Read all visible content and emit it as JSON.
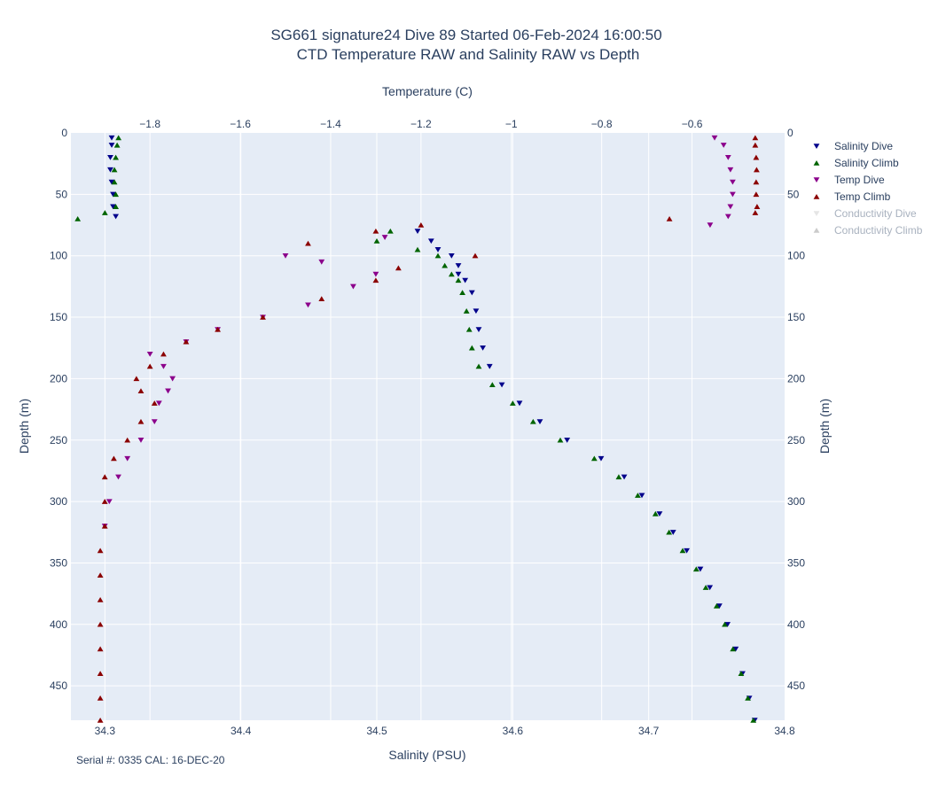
{
  "chart_data": {
    "type": "scatter",
    "title_line1": "SG661 signature24 Dive 89 Started 06-Feb-2024 16:00:50",
    "title_line2": "CTD Temperature RAW and Salinity RAW vs Depth",
    "x_bottom_label": "Salinity (PSU)",
    "x_top_label": "Temperature (C)",
    "y_label": "Depth (m)",
    "y_right_label": "Depth (m)",
    "footnote": "Serial #: 0335  CAL: 16-DEC-20",
    "x_bottom_range": [
      34.275,
      34.8
    ],
    "x_bottom_ticks": [
      34.3,
      34.4,
      34.5,
      34.6,
      34.7,
      34.8
    ],
    "x_bottom_tick_labels": [
      "34.3",
      "34.4",
      "34.5",
      "34.6",
      "34.7",
      "34.8"
    ],
    "x_top_range": [
      -1.975,
      -0.395
    ],
    "x_top_ticks": [
      -1.8,
      -1.6,
      -1.4,
      -1.2,
      -1.0,
      -0.8,
      -0.6
    ],
    "x_top_tick_labels": [
      "−1.8",
      "−1.6",
      "−1.4",
      "−1.2",
      "−1",
      "−0.8",
      "−0.6"
    ],
    "y_range": [
      0,
      478
    ],
    "y_reversed": true,
    "y_ticks": [
      0,
      50,
      100,
      150,
      200,
      250,
      300,
      350,
      400,
      450
    ],
    "y_tick_labels": [
      "0",
      "50",
      "100",
      "150",
      "200",
      "250",
      "300",
      "350",
      "400",
      "450"
    ],
    "grid": true,
    "legend_position": "right",
    "series": [
      {
        "name": "Salinity Dive",
        "axis": "salinity",
        "marker": "triangle-down",
        "color": "#00008b",
        "visible": true,
        "depth": [
          4,
          10,
          20,
          30,
          40,
          50,
          60,
          68,
          80,
          88,
          95,
          100,
          108,
          115,
          120,
          130,
          145,
          160,
          175,
          190,
          205,
          220,
          235,
          250,
          265,
          280,
          295,
          310,
          325,
          340,
          355,
          370,
          385,
          400,
          420,
          440,
          460,
          478
        ],
        "values": [
          34.305,
          34.305,
          34.304,
          34.304,
          34.305,
          34.306,
          34.306,
          34.308,
          34.53,
          34.54,
          34.545,
          34.555,
          34.56,
          34.56,
          34.565,
          34.57,
          34.573,
          34.575,
          34.578,
          34.583,
          34.592,
          34.605,
          34.62,
          34.64,
          34.665,
          34.682,
          34.695,
          34.708,
          34.718,
          34.728,
          34.738,
          34.745,
          34.752,
          34.758,
          34.764,
          34.769,
          34.774,
          34.778
        ]
      },
      {
        "name": "Salinity Climb",
        "axis": "salinity",
        "marker": "triangle-up",
        "color": "#006400",
        "visible": true,
        "depth": [
          4,
          10,
          20,
          30,
          40,
          50,
          60,
          65,
          70,
          80,
          88,
          95,
          100,
          108,
          115,
          120,
          130,
          145,
          160,
          175,
          190,
          205,
          220,
          235,
          250,
          265,
          280,
          295,
          310,
          325,
          340,
          355,
          370,
          385,
          400,
          420,
          440,
          460,
          478
        ],
        "values": [
          34.31,
          34.309,
          34.308,
          34.307,
          34.307,
          34.308,
          34.308,
          34.3,
          34.28,
          34.51,
          34.5,
          34.53,
          34.545,
          34.55,
          34.555,
          34.56,
          34.563,
          34.566,
          34.568,
          34.57,
          34.575,
          34.585,
          34.6,
          34.615,
          34.635,
          34.66,
          34.678,
          34.692,
          34.705,
          34.715,
          34.725,
          34.735,
          34.742,
          34.75,
          34.756,
          34.762,
          34.768,
          34.773,
          34.777
        ]
      },
      {
        "name": "Temp Dive",
        "axis": "temperature",
        "marker": "triangle-down",
        "color": "#8b008b",
        "visible": true,
        "depth": [
          4,
          10,
          20,
          30,
          40,
          50,
          60,
          68,
          75,
          85,
          100,
          105,
          115,
          125,
          140,
          150,
          160,
          170,
          180,
          190,
          200,
          210,
          220,
          235,
          250,
          265,
          280,
          300,
          320
        ],
        "values": [
          -0.55,
          -0.53,
          -0.52,
          -0.515,
          -0.51,
          -0.51,
          -0.515,
          -0.52,
          -0.56,
          -1.28,
          -1.5,
          -1.42,
          -1.3,
          -1.35,
          -1.45,
          -1.55,
          -1.65,
          -1.72,
          -1.8,
          -1.77,
          -1.75,
          -1.76,
          -1.78,
          -1.79,
          -1.82,
          -1.85,
          -1.87,
          -1.89,
          -1.9
        ]
      },
      {
        "name": "Temp Climb",
        "axis": "temperature",
        "marker": "triangle-up",
        "color": "#8b0000",
        "visible": true,
        "depth": [
          4,
          10,
          20,
          30,
          40,
          50,
          60,
          65,
          70,
          75,
          80,
          90,
          100,
          110,
          120,
          135,
          150,
          160,
          170,
          180,
          190,
          200,
          210,
          220,
          235,
          250,
          265,
          280,
          300,
          320,
          340,
          360,
          380,
          400,
          420,
          440,
          460,
          478
        ],
        "values": [
          -0.46,
          -0.46,
          -0.458,
          -0.457,
          -0.458,
          -0.458,
          -0.456,
          -0.46,
          -0.65,
          -1.2,
          -1.3,
          -1.45,
          -1.08,
          -1.25,
          -1.3,
          -1.42,
          -1.55,
          -1.65,
          -1.72,
          -1.77,
          -1.8,
          -1.83,
          -1.82,
          -1.79,
          -1.82,
          -1.85,
          -1.88,
          -1.9,
          -1.9,
          -1.9,
          -1.91,
          -1.91,
          -1.91,
          -1.91,
          -1.91,
          -1.91,
          -1.91,
          -1.91
        ]
      },
      {
        "name": "Conductivity Dive",
        "axis": "none",
        "marker": "triangle-down",
        "color": "#d3d3d3",
        "visible": false,
        "depth": [],
        "values": []
      },
      {
        "name": "Conductivity Climb",
        "axis": "none",
        "marker": "triangle-up",
        "color": "#a9a9a9",
        "visible": false,
        "depth": [],
        "values": []
      }
    ]
  }
}
